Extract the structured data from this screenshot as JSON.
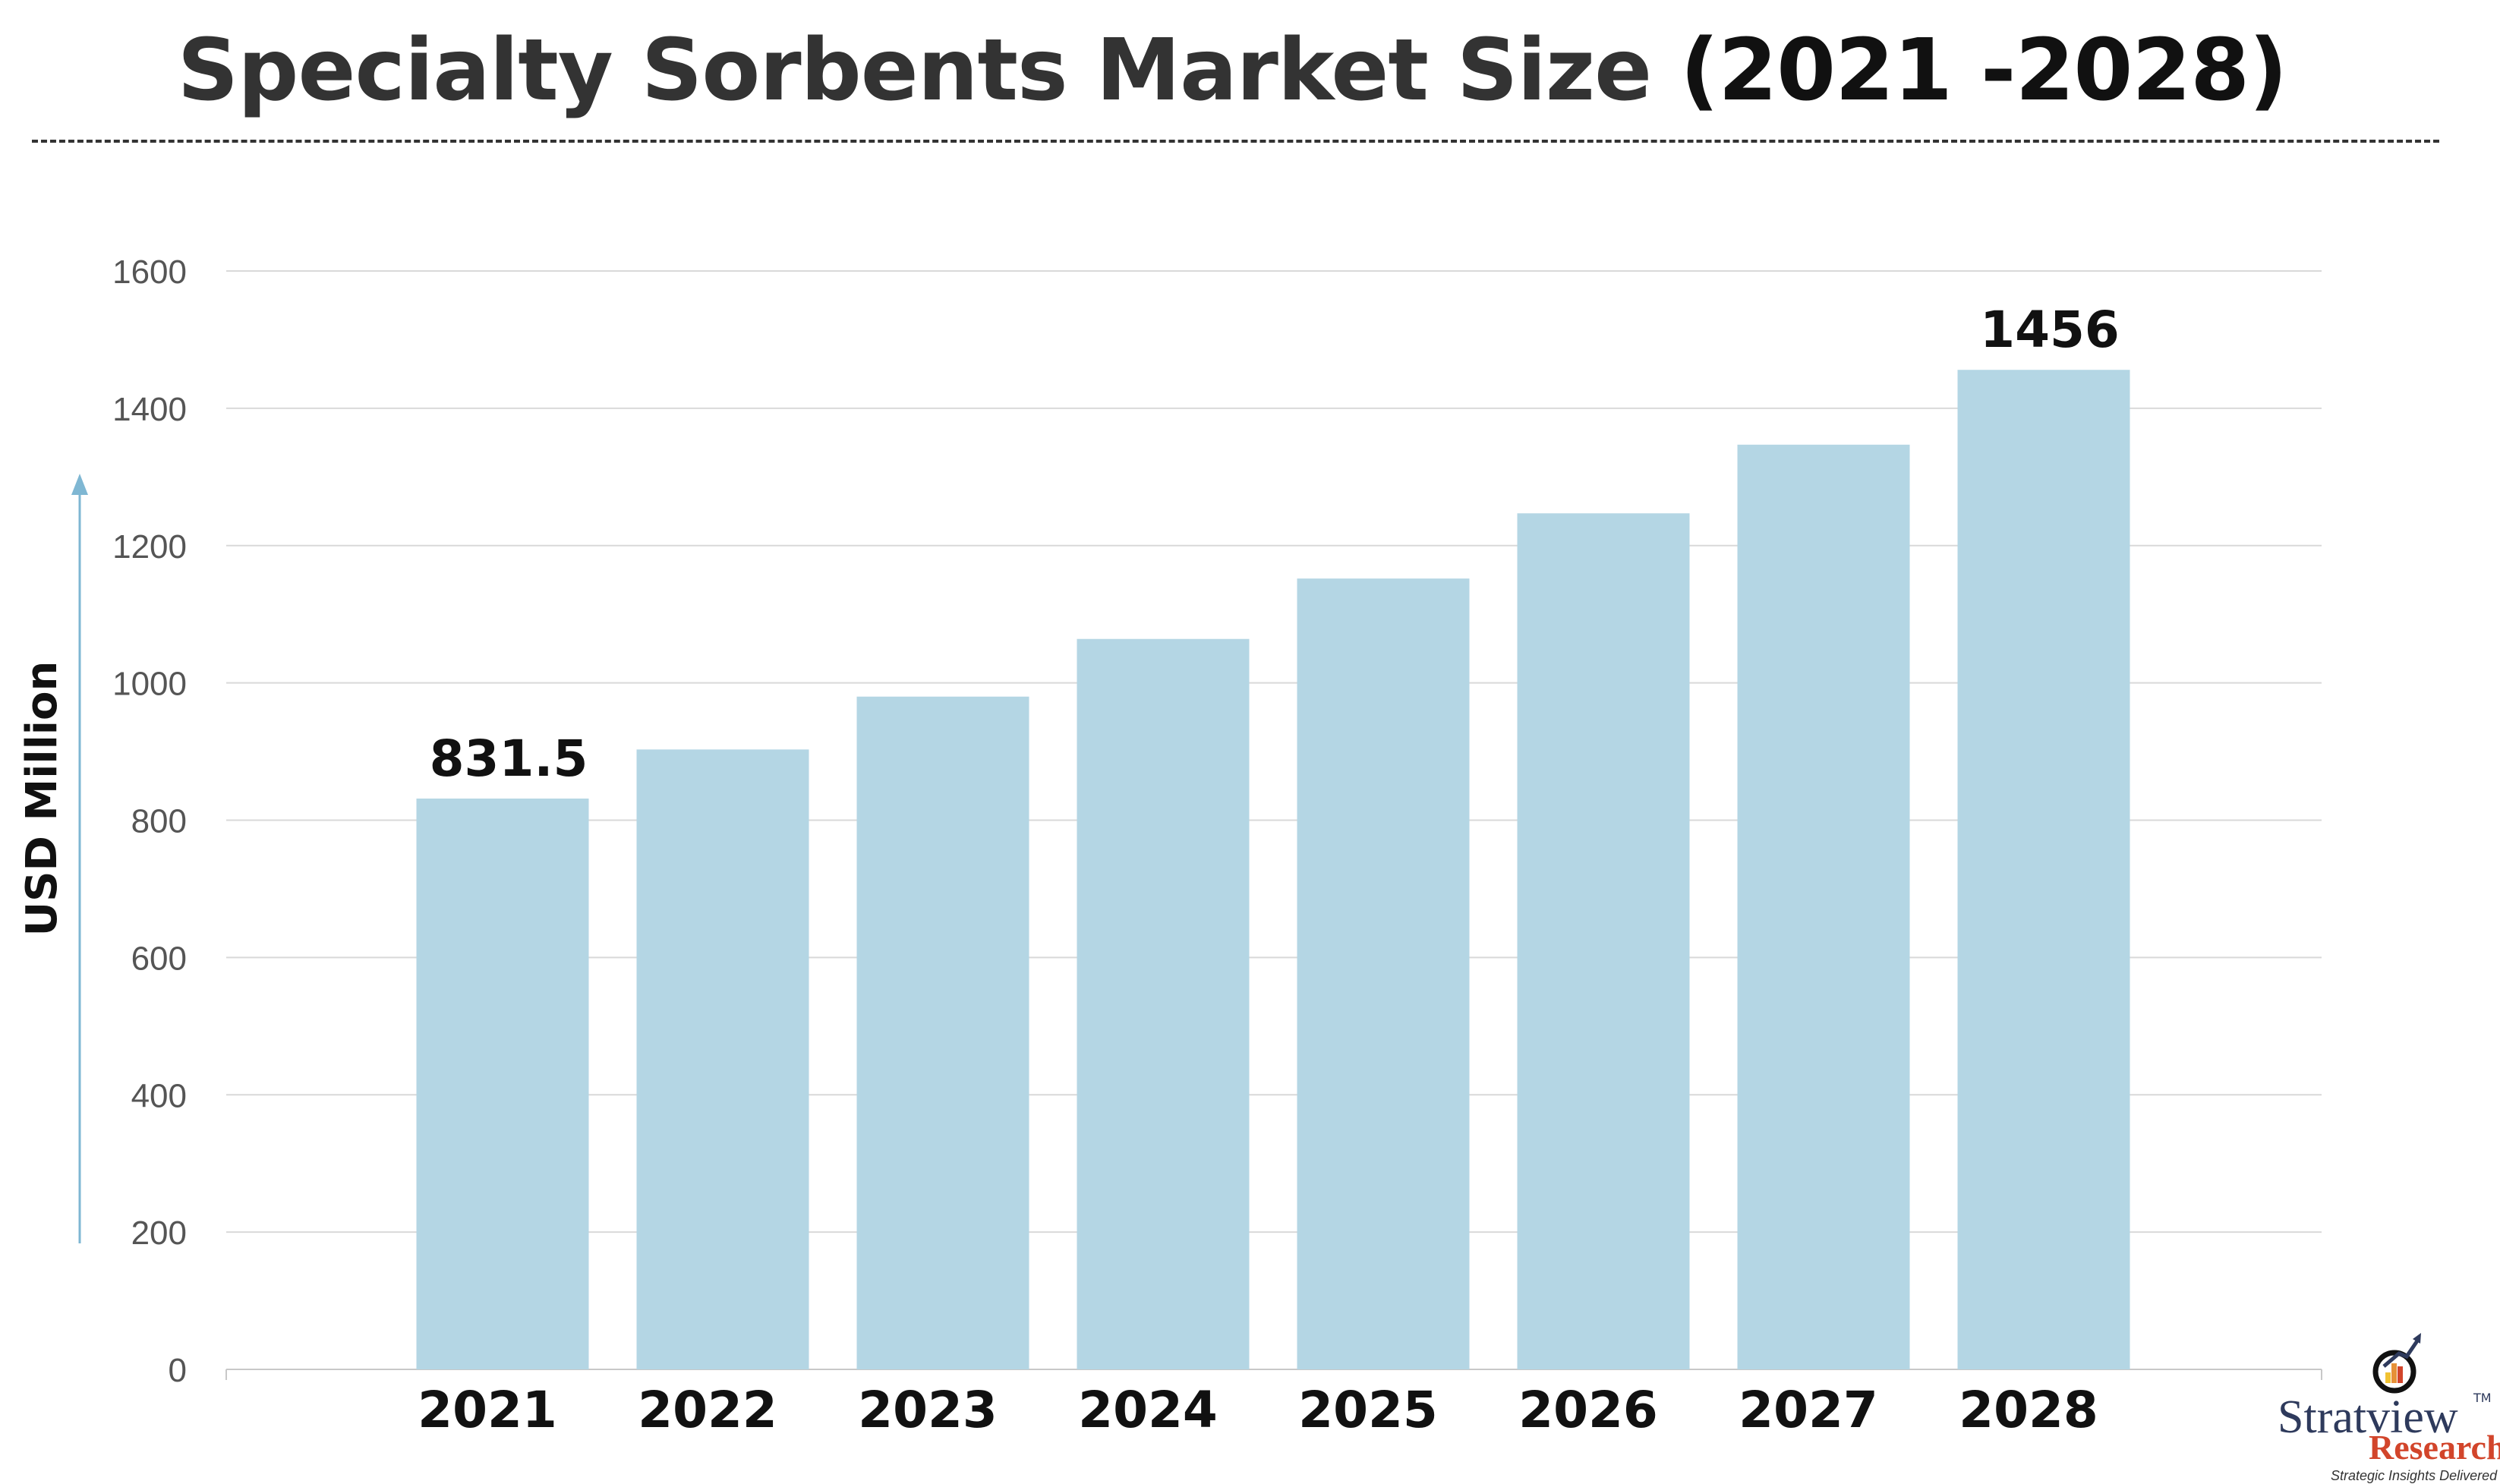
{
  "title": {
    "main": "Specialty Sorbents Market Size ",
    "years": "(2021 -2028)"
  },
  "chart_data": {
    "type": "bar",
    "title": "Specialty Sorbents Market Size (2021 -2028)",
    "xlabel": "",
    "ylabel": "USD Million",
    "categories": [
      "2021",
      "2022",
      "2023",
      "2024",
      "2025",
      "2026",
      "2027",
      "2028"
    ],
    "values": [
      831.5,
      903,
      980,
      1064,
      1152,
      1247,
      1347,
      1456
    ],
    "data_labels": {
      "0": "831.5",
      "7": "1456"
    },
    "ylim": [
      0,
      1600
    ],
    "yticks": [
      "0",
      "200",
      "400",
      "600",
      "800",
      "1000",
      "1200",
      "1400",
      "1600"
    ],
    "grid": true,
    "bar_color": "#b4d6e4",
    "arrow_color": "#7fb7d3"
  },
  "logo": {
    "name": "Stratview",
    "tm": "TM",
    "sub": "Research",
    "tagline": "Strategic Insights Delivered"
  }
}
